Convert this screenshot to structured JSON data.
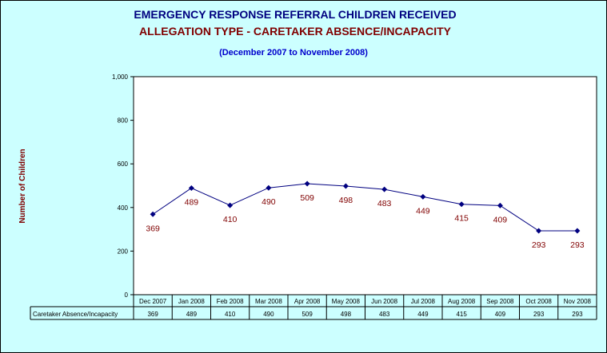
{
  "chart_data": {
    "type": "line",
    "title": "EMERGENCY RESPONSE REFERRAL CHILDREN RECEIVED",
    "subtitle": "ALLEGATION TYPE - CARETAKER ABSENCE/INCAPACITY",
    "period": "(December 2007 to November 2008)",
    "ylabel": "Number of Children",
    "ylim": [
      0,
      1000
    ],
    "yticks": [
      "0",
      "200",
      "400",
      "600",
      "800",
      "1,000"
    ],
    "ytick_values": [
      0,
      200,
      400,
      600,
      800,
      1000
    ],
    "categories": [
      "Dec 2007",
      "Jan 2008",
      "Feb 2008",
      "Mar 2008",
      "Apr 2008",
      "May 2008",
      "Jun 2008",
      "Jul 2008",
      "Aug 2008",
      "Sep 2008",
      "Oct 2008",
      "Nov 2008"
    ],
    "series": [
      {
        "name": "Caretaker Absence/Incapacity",
        "values": [
          369,
          489,
          410,
          490,
          509,
          498,
          483,
          449,
          415,
          409,
          293,
          293
        ],
        "color": "#000080"
      }
    ],
    "grid": false,
    "data_table": true,
    "plot_background": "#ffffff",
    "label_color": "#800000"
  }
}
